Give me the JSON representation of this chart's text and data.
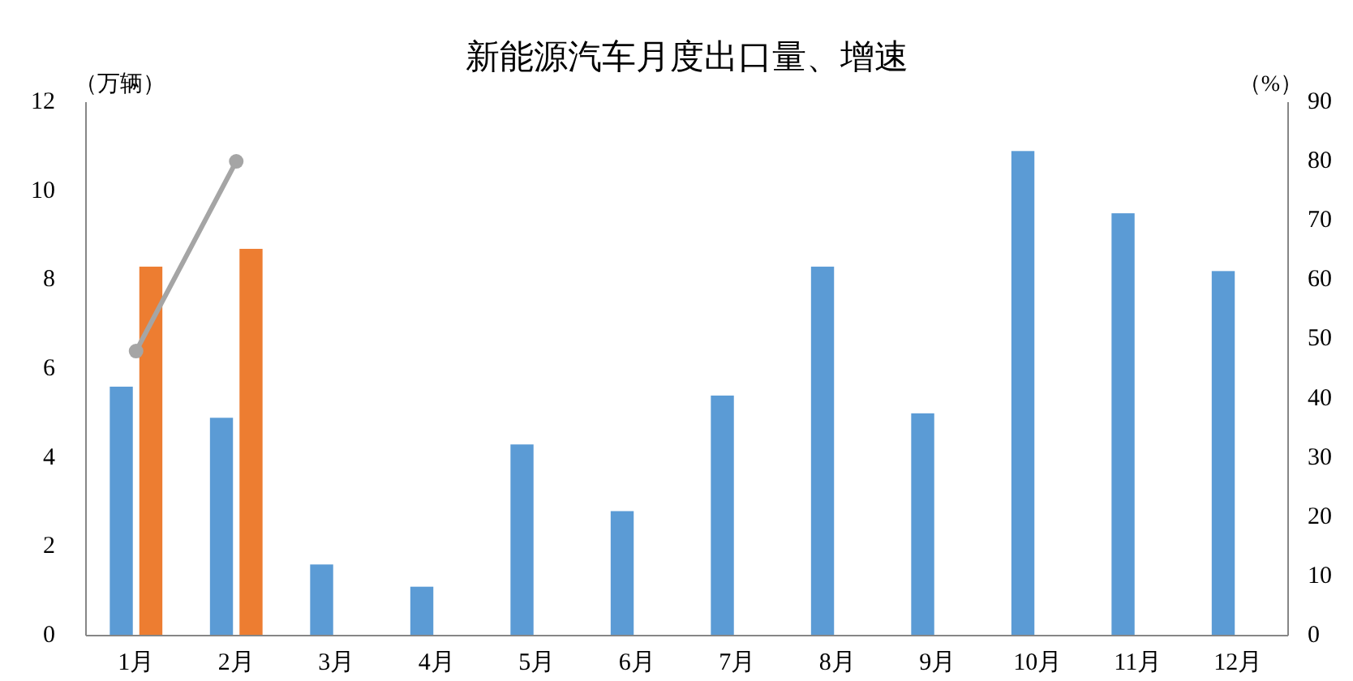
{
  "chart_data": {
    "type": "bar",
    "title": "新能源汽车月度出口量、增速",
    "ylabel": "（万辆）",
    "y2label": "（%）",
    "categories": [
      "1月",
      "2月",
      "3月",
      "4月",
      "5月",
      "6月",
      "7月",
      "8月",
      "9月",
      "10月",
      "11月",
      "12月"
    ],
    "series": [
      {
        "color": "#5b9bd5",
        "values": [
          5.6,
          4.9,
          1.6,
          1.1,
          4.3,
          2.8,
          5.4,
          8.3,
          5.0,
          10.9,
          9.5,
          8.2
        ]
      },
      {
        "color": "#ed7d31",
        "values": [
          8.3,
          8.7,
          null,
          null,
          null,
          null,
          null,
          null,
          null,
          null,
          null,
          null
        ]
      },
      {
        "type": "line",
        "axis": "y2",
        "color": "#a5a5a5",
        "values": [
          48,
          80,
          null,
          null,
          null,
          null,
          null,
          null,
          null,
          null,
          null,
          null
        ]
      }
    ],
    "ylim": [
      0,
      12
    ],
    "yticks": [
      0,
      2,
      4,
      6,
      8,
      10,
      12
    ],
    "y2lim": [
      0,
      90
    ],
    "y2ticks": [
      0,
      10,
      20,
      30,
      40,
      50,
      60,
      70,
      80,
      90
    ],
    "marker": "circle"
  }
}
